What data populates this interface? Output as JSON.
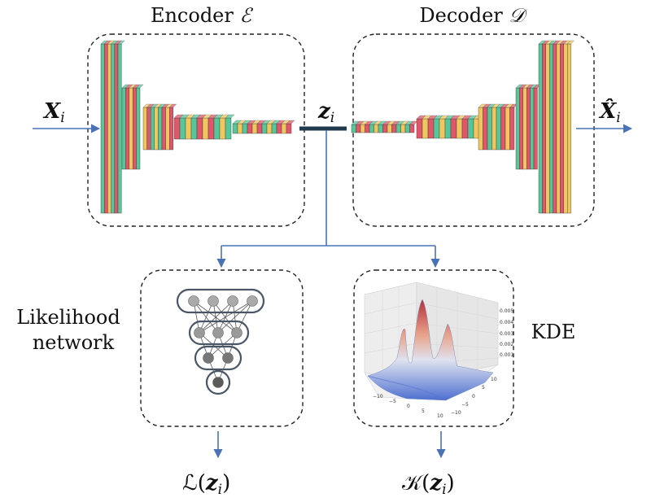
{
  "encoder": {
    "word": "Encoder",
    "symbol": "ℰ"
  },
  "decoder": {
    "word": "Decoder",
    "symbol": "𝒟"
  },
  "input": {
    "symbol": "X",
    "subscript": "i"
  },
  "output": {
    "symbol": "X̂",
    "subscript": "i"
  },
  "latent": {
    "symbol": "z",
    "subscript": "i"
  },
  "likelihood": {
    "line1": "Likelihood",
    "line2": "network",
    "output": "ℒ(",
    "output_var": "z",
    "output_sub": "i",
    "output_close": ")"
  },
  "kde": {
    "label": "KDE",
    "output": "𝒦(",
    "output_var": "z",
    "output_sub": "i",
    "output_close": ")",
    "plot_ticks_z": [
      "0.005",
      "0.004",
      "0.003",
      "0.002",
      "0.001"
    ],
    "plot_ticks_x": [
      "−10",
      "−5",
      "0",
      "5",
      "10"
    ],
    "plot_ticks_y": [
      "10",
      "5",
      "0",
      "−5",
      "−10"
    ]
  },
  "colors": {
    "green": "#55c79a",
    "red": "#e0576a",
    "yellow": "#f0c75e",
    "blue": "#5b9bd5",
    "arrow": "#4a72b5",
    "line": "#2a2a2a"
  }
}
